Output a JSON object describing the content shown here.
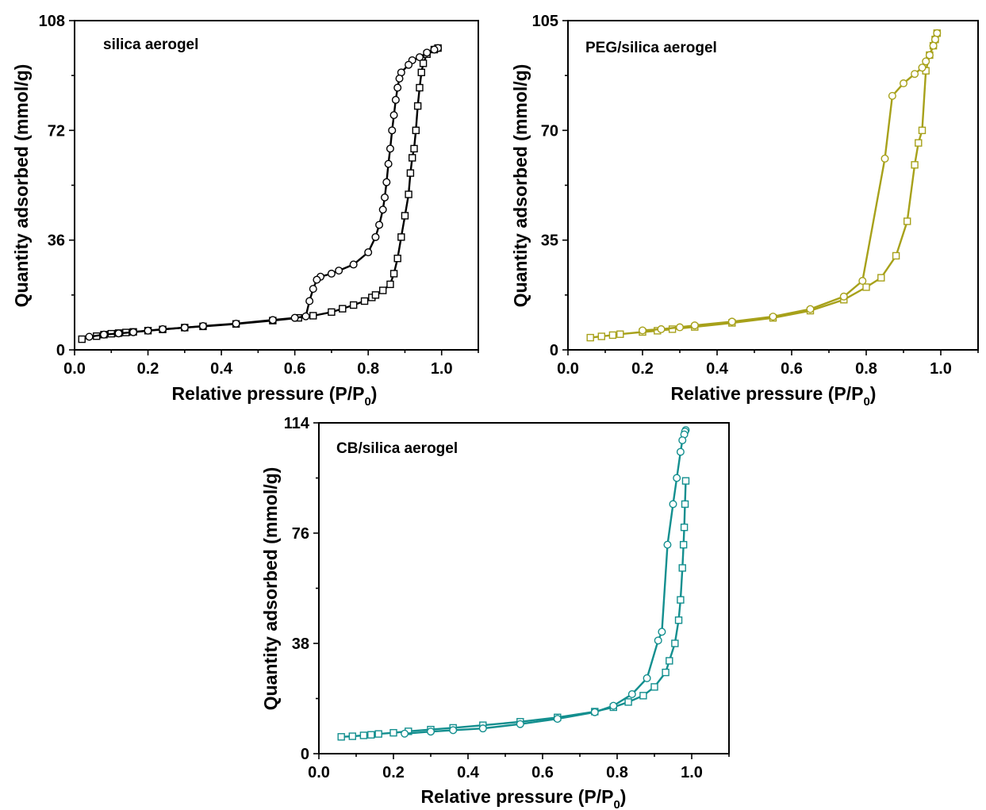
{
  "chart_data": [
    {
      "type": "line",
      "panel_label": "silica aerogel",
      "xlabel": "Relative pressure (P/P",
      "xlabel_sub": "0",
      "xlabel_end": ")",
      "ylabel": "Quantity adsorbed (mmol/g)",
      "xlim": [
        0.0,
        1.1
      ],
      "ylim": [
        0,
        108
      ],
      "xticks": [
        0.0,
        0.2,
        0.4,
        0.6,
        0.8,
        1.0
      ],
      "xtick_labels": [
        "0.0",
        "0.2",
        "0.4",
        "0.6",
        "0.8",
        "1.0"
      ],
      "yticks": [
        0,
        36,
        72,
        108
      ],
      "ytick_labels": [
        "0",
        "36",
        "72",
        "108"
      ],
      "color": "#000000",
      "series": [
        {
          "marker": "square",
          "x": [
            0.02,
            0.06,
            0.08,
            0.1,
            0.12,
            0.14,
            0.16,
            0.2,
            0.24,
            0.3,
            0.35,
            0.44,
            0.54,
            0.61,
            0.65,
            0.7,
            0.73,
            0.76,
            0.79,
            0.81,
            0.82,
            0.84,
            0.86,
            0.87,
            0.88,
            0.89,
            0.9,
            0.91,
            0.915,
            0.92,
            0.925,
            0.93,
            0.935,
            0.94,
            0.945,
            0.95,
            0.96,
            0.98,
            0.99
          ],
          "y": [
            3.5,
            4.5,
            5.0,
            5.3,
            5.5,
            5.7,
            5.9,
            6.3,
            6.7,
            7.3,
            7.7,
            8.5,
            9.6,
            10.5,
            11.2,
            12.4,
            13.5,
            14.7,
            16.0,
            17.2,
            18.0,
            19.5,
            21.5,
            25.0,
            30.0,
            37.0,
            44.0,
            51.0,
            58.0,
            63.0,
            66.0,
            72.0,
            80.0,
            86.0,
            91.0,
            94.0,
            97.0,
            98.5,
            99.0
          ]
        },
        {
          "marker": "circle",
          "x": [
            0.99,
            0.98,
            0.96,
            0.94,
            0.92,
            0.91,
            0.89,
            0.885,
            0.88,
            0.875,
            0.87,
            0.865,
            0.86,
            0.855,
            0.85,
            0.845,
            0.84,
            0.83,
            0.82,
            0.8,
            0.76,
            0.72,
            0.7,
            0.67,
            0.66,
            0.65,
            0.64,
            0.63,
            0.6,
            0.54,
            0.44,
            0.35,
            0.3,
            0.24,
            0.2,
            0.16,
            0.12,
            0.08,
            0.04
          ],
          "y": [
            99.0,
            98.5,
            97.5,
            96.0,
            95.0,
            93.5,
            91.0,
            89.0,
            86.0,
            82.0,
            77.0,
            72.0,
            66.0,
            61.0,
            55.0,
            50.0,
            46.0,
            41.0,
            37.0,
            32.0,
            28.0,
            26.0,
            25.0,
            24.0,
            23.0,
            20.0,
            16.0,
            11.0,
            10.5,
            9.8,
            8.6,
            7.8,
            7.3,
            6.8,
            6.3,
            5.8,
            5.4,
            5.0,
            4.3
          ]
        }
      ]
    },
    {
      "type": "line",
      "panel_label": "PEG/silica aerogel",
      "xlabel": "Relative pressure (P/P",
      "xlabel_sub": "0",
      "xlabel_end": ")",
      "ylabel": "Quantity adsorbed (mmol/g)",
      "xlim": [
        0.0,
        1.1
      ],
      "ylim": [
        0,
        105
      ],
      "xticks": [
        0.0,
        0.2,
        0.4,
        0.6,
        0.8,
        1.0
      ],
      "xtick_labels": [
        "0.0",
        "0.2",
        "0.4",
        "0.6",
        "0.8",
        "1.0"
      ],
      "yticks": [
        0,
        35,
        70,
        105
      ],
      "ytick_labels": [
        "0",
        "35",
        "70",
        "105"
      ],
      "color": "#a7a11a",
      "series": [
        {
          "marker": "square",
          "x": [
            0.06,
            0.09,
            0.12,
            0.14,
            0.2,
            0.24,
            0.28,
            0.34,
            0.44,
            0.55,
            0.65,
            0.74,
            0.8,
            0.84,
            0.88,
            0.91,
            0.93,
            0.94,
            0.95,
            0.96,
            0.97,
            0.98,
            0.985,
            0.99
          ],
          "y": [
            3.9,
            4.3,
            4.7,
            5.0,
            5.7,
            6.1,
            6.6,
            7.3,
            8.6,
            10.2,
            12.5,
            16.0,
            20.0,
            23.0,
            30.0,
            41.0,
            59.0,
            66.0,
            70.0,
            89.0,
            94.0,
            97.0,
            99.0,
            101.0
          ]
        },
        {
          "marker": "circle",
          "x": [
            0.99,
            0.985,
            0.98,
            0.97,
            0.96,
            0.95,
            0.93,
            0.9,
            0.87,
            0.85,
            0.79,
            0.74,
            0.65,
            0.55,
            0.44,
            0.34,
            0.3,
            0.25,
            0.2
          ],
          "y": [
            101.0,
            99.0,
            97.0,
            94.0,
            92.0,
            90.0,
            88.0,
            85.0,
            81.0,
            61.0,
            22.0,
            17.0,
            13.0,
            10.6,
            9.0,
            7.8,
            7.2,
            6.6,
            6.2
          ]
        }
      ]
    },
    {
      "type": "line",
      "panel_label": "CB/silica aerogel",
      "xlabel": "Relative pressure (P/P",
      "xlabel_sub": "0",
      "xlabel_end": ")",
      "ylabel": "Quantity adsorbed (mmol/g)",
      "xlim": [
        0.0,
        1.1
      ],
      "ylim": [
        0,
        114
      ],
      "xticks": [
        0.0,
        0.2,
        0.4,
        0.6,
        0.8,
        1.0
      ],
      "xtick_labels": [
        "0.0",
        "0.2",
        "0.4",
        "0.6",
        "0.8",
        "1.0"
      ],
      "yticks": [
        0,
        38,
        76,
        114
      ],
      "ytick_labels": [
        "0",
        "38",
        "76",
        "114"
      ],
      "color": "#138f8f",
      "series": [
        {
          "marker": "square",
          "x": [
            0.06,
            0.09,
            0.12,
            0.14,
            0.16,
            0.2,
            0.24,
            0.3,
            0.36,
            0.44,
            0.54,
            0.64,
            0.74,
            0.79,
            0.83,
            0.87,
            0.9,
            0.93,
            0.94,
            0.955,
            0.965,
            0.97,
            0.975,
            0.978,
            0.98,
            0.982,
            0.984
          ],
          "y": [
            5.8,
            6.0,
            6.3,
            6.5,
            6.8,
            7.2,
            7.7,
            8.3,
            8.9,
            9.8,
            11.0,
            12.5,
            14.5,
            16.0,
            17.8,
            20.0,
            23.0,
            28.0,
            32.0,
            38.0,
            46.0,
            53.0,
            64.0,
            72.0,
            78.0,
            86.0,
            94.0
          ]
        },
        {
          "marker": "circle",
          "x": [
            0.984,
            0.982,
            0.98,
            0.975,
            0.97,
            0.96,
            0.95,
            0.935,
            0.92,
            0.91,
            0.88,
            0.84,
            0.79,
            0.74,
            0.64,
            0.54,
            0.44,
            0.36,
            0.3,
            0.23
          ],
          "y": [
            111.5,
            111.0,
            110.0,
            108.0,
            104.0,
            95.0,
            86.0,
            72.0,
            42.0,
            39.0,
            26.0,
            20.5,
            16.5,
            14.3,
            12.0,
            10.2,
            8.7,
            8.1,
            7.6,
            6.9
          ]
        }
      ]
    }
  ]
}
